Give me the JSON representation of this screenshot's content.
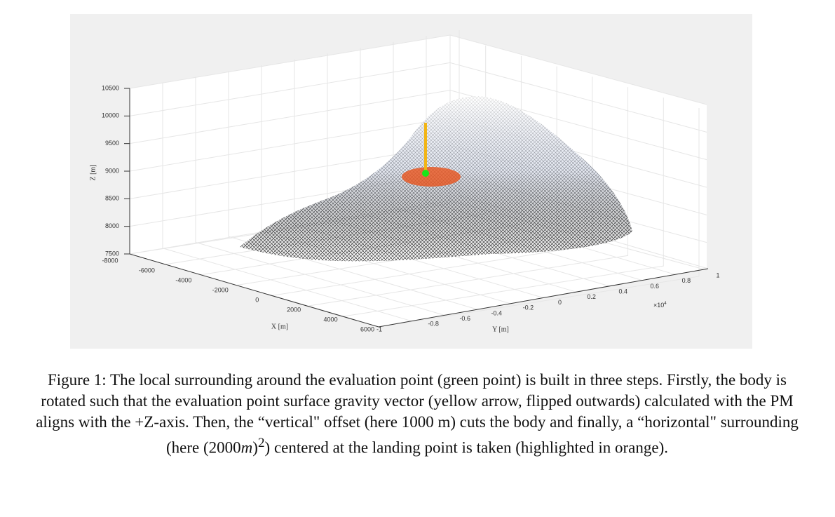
{
  "figure": {
    "z_axis": {
      "label": "Z [m]",
      "ticks": [
        7500,
        8000,
        8500,
        9000,
        9500,
        10000,
        10500
      ]
    },
    "x_axis": {
      "label": "X [m]",
      "ticks": [
        -8000,
        -6000,
        -4000,
        -2000,
        0,
        2000,
        4000,
        6000
      ]
    },
    "y_axis": {
      "label": "Y [m]",
      "ticks": [
        -1,
        -0.8,
        -0.6,
        -0.4,
        -0.2,
        0,
        0.2,
        0.4,
        0.6,
        0.8,
        1
      ],
      "multiplier": {
        "base": "×10",
        "power": "4"
      }
    }
  },
  "caption": {
    "text_before": "Figure 1: The local surrounding around the evaluation point (green point) is built in three steps. Firstly, the body is rotated such that the evaluation point surface gravity vector (yellow arrow, flipped outwards) calculated with the PM aligns with the +Z-axis. Then, the “vertical\" offset (here 1000 m) cuts the body and finally, a “horizontal\" surrounding (here (2000",
    "variable": "m",
    "close": ")",
    "exponent": "2",
    "text_after": ") centered at the landing point is taken (highlighted in orange)."
  }
}
